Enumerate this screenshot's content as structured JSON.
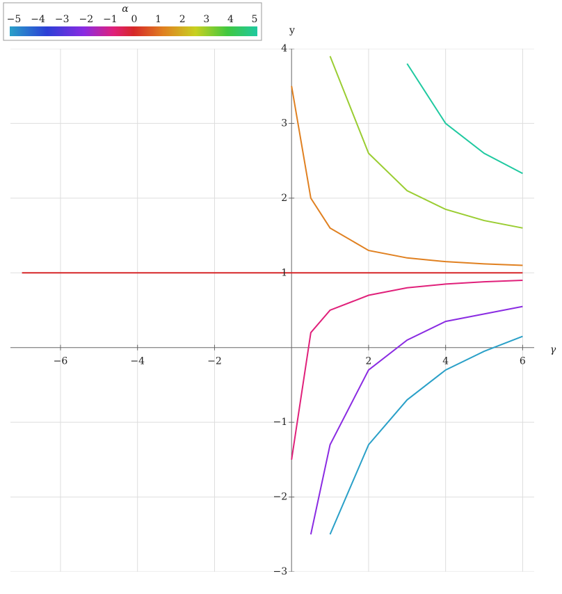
{
  "chart_data": {
    "type": "line",
    "x_label": "γ",
    "y_label": "y",
    "colorbar": {
      "title": "α",
      "ticks": [
        {
          "value": -5,
          "label": "−5"
        },
        {
          "value": -4,
          "label": "−4"
        },
        {
          "value": -3,
          "label": "−3"
        },
        {
          "value": -2,
          "label": "−2"
        },
        {
          "value": -1,
          "label": "−1"
        },
        0,
        1,
        2,
        3,
        4,
        5
      ]
    },
    "x": [
      -7,
      -6,
      -5,
      -4,
      -3,
      -2,
      -1,
      0,
      0.5,
      1,
      2,
      3,
      4,
      5,
      6
    ],
    "series": [
      {
        "color": "#1fc9a0",
        "values": [
          null,
          null,
          null,
          null,
          null,
          null,
          null,
          null,
          null,
          null,
          null,
          3.8,
          3.0,
          2.6,
          2.33
        ]
      },
      {
        "color": "#9acd32",
        "values": [
          null,
          null,
          null,
          null,
          null,
          null,
          null,
          null,
          null,
          3.9,
          2.6,
          2.1,
          1.85,
          1.7,
          1.6
        ]
      },
      {
        "color": "#e08020",
        "values": [
          null,
          null,
          null,
          null,
          null,
          null,
          null,
          3.5,
          2.0,
          1.6,
          1.3,
          1.2,
          1.15,
          1.12,
          1.1
        ]
      },
      {
        "color": "#d62728",
        "values": [
          1,
          1,
          1,
          1,
          1,
          1,
          1,
          1,
          1,
          1,
          1,
          1,
          1,
          1,
          1
        ]
      },
      {
        "color": "#e0207a",
        "values": [
          null,
          null,
          null,
          null,
          null,
          null,
          null,
          -1.5,
          0.2,
          0.5,
          0.7,
          0.8,
          0.85,
          0.88,
          0.9
        ]
      },
      {
        "color": "#8a2be2",
        "values": [
          null,
          null,
          null,
          null,
          null,
          null,
          null,
          null,
          -2.5,
          -1.3,
          -0.3,
          0.1,
          0.35,
          0.45,
          0.55
        ]
      },
      {
        "color": "#2aa0c8",
        "values": [
          null,
          null,
          null,
          null,
          null,
          null,
          null,
          null,
          null,
          -2.5,
          -1.3,
          -0.7,
          -0.3,
          -0.05,
          0.15
        ]
      }
    ],
    "xlim": [
      -7.3,
      6.3
    ],
    "ylim": [
      -3,
      4
    ],
    "xticks": [
      {
        "value": -6,
        "label": "−6"
      },
      {
        "value": -4,
        "label": "−4"
      },
      {
        "value": -2,
        "label": "−2"
      },
      2,
      4,
      6
    ],
    "yticks": [
      {
        "value": -3,
        "label": "−3"
      },
      {
        "value": -2,
        "label": "−2"
      },
      {
        "value": -1,
        "label": "−1"
      },
      1,
      2,
      3,
      4
    ],
    "grid": true
  }
}
